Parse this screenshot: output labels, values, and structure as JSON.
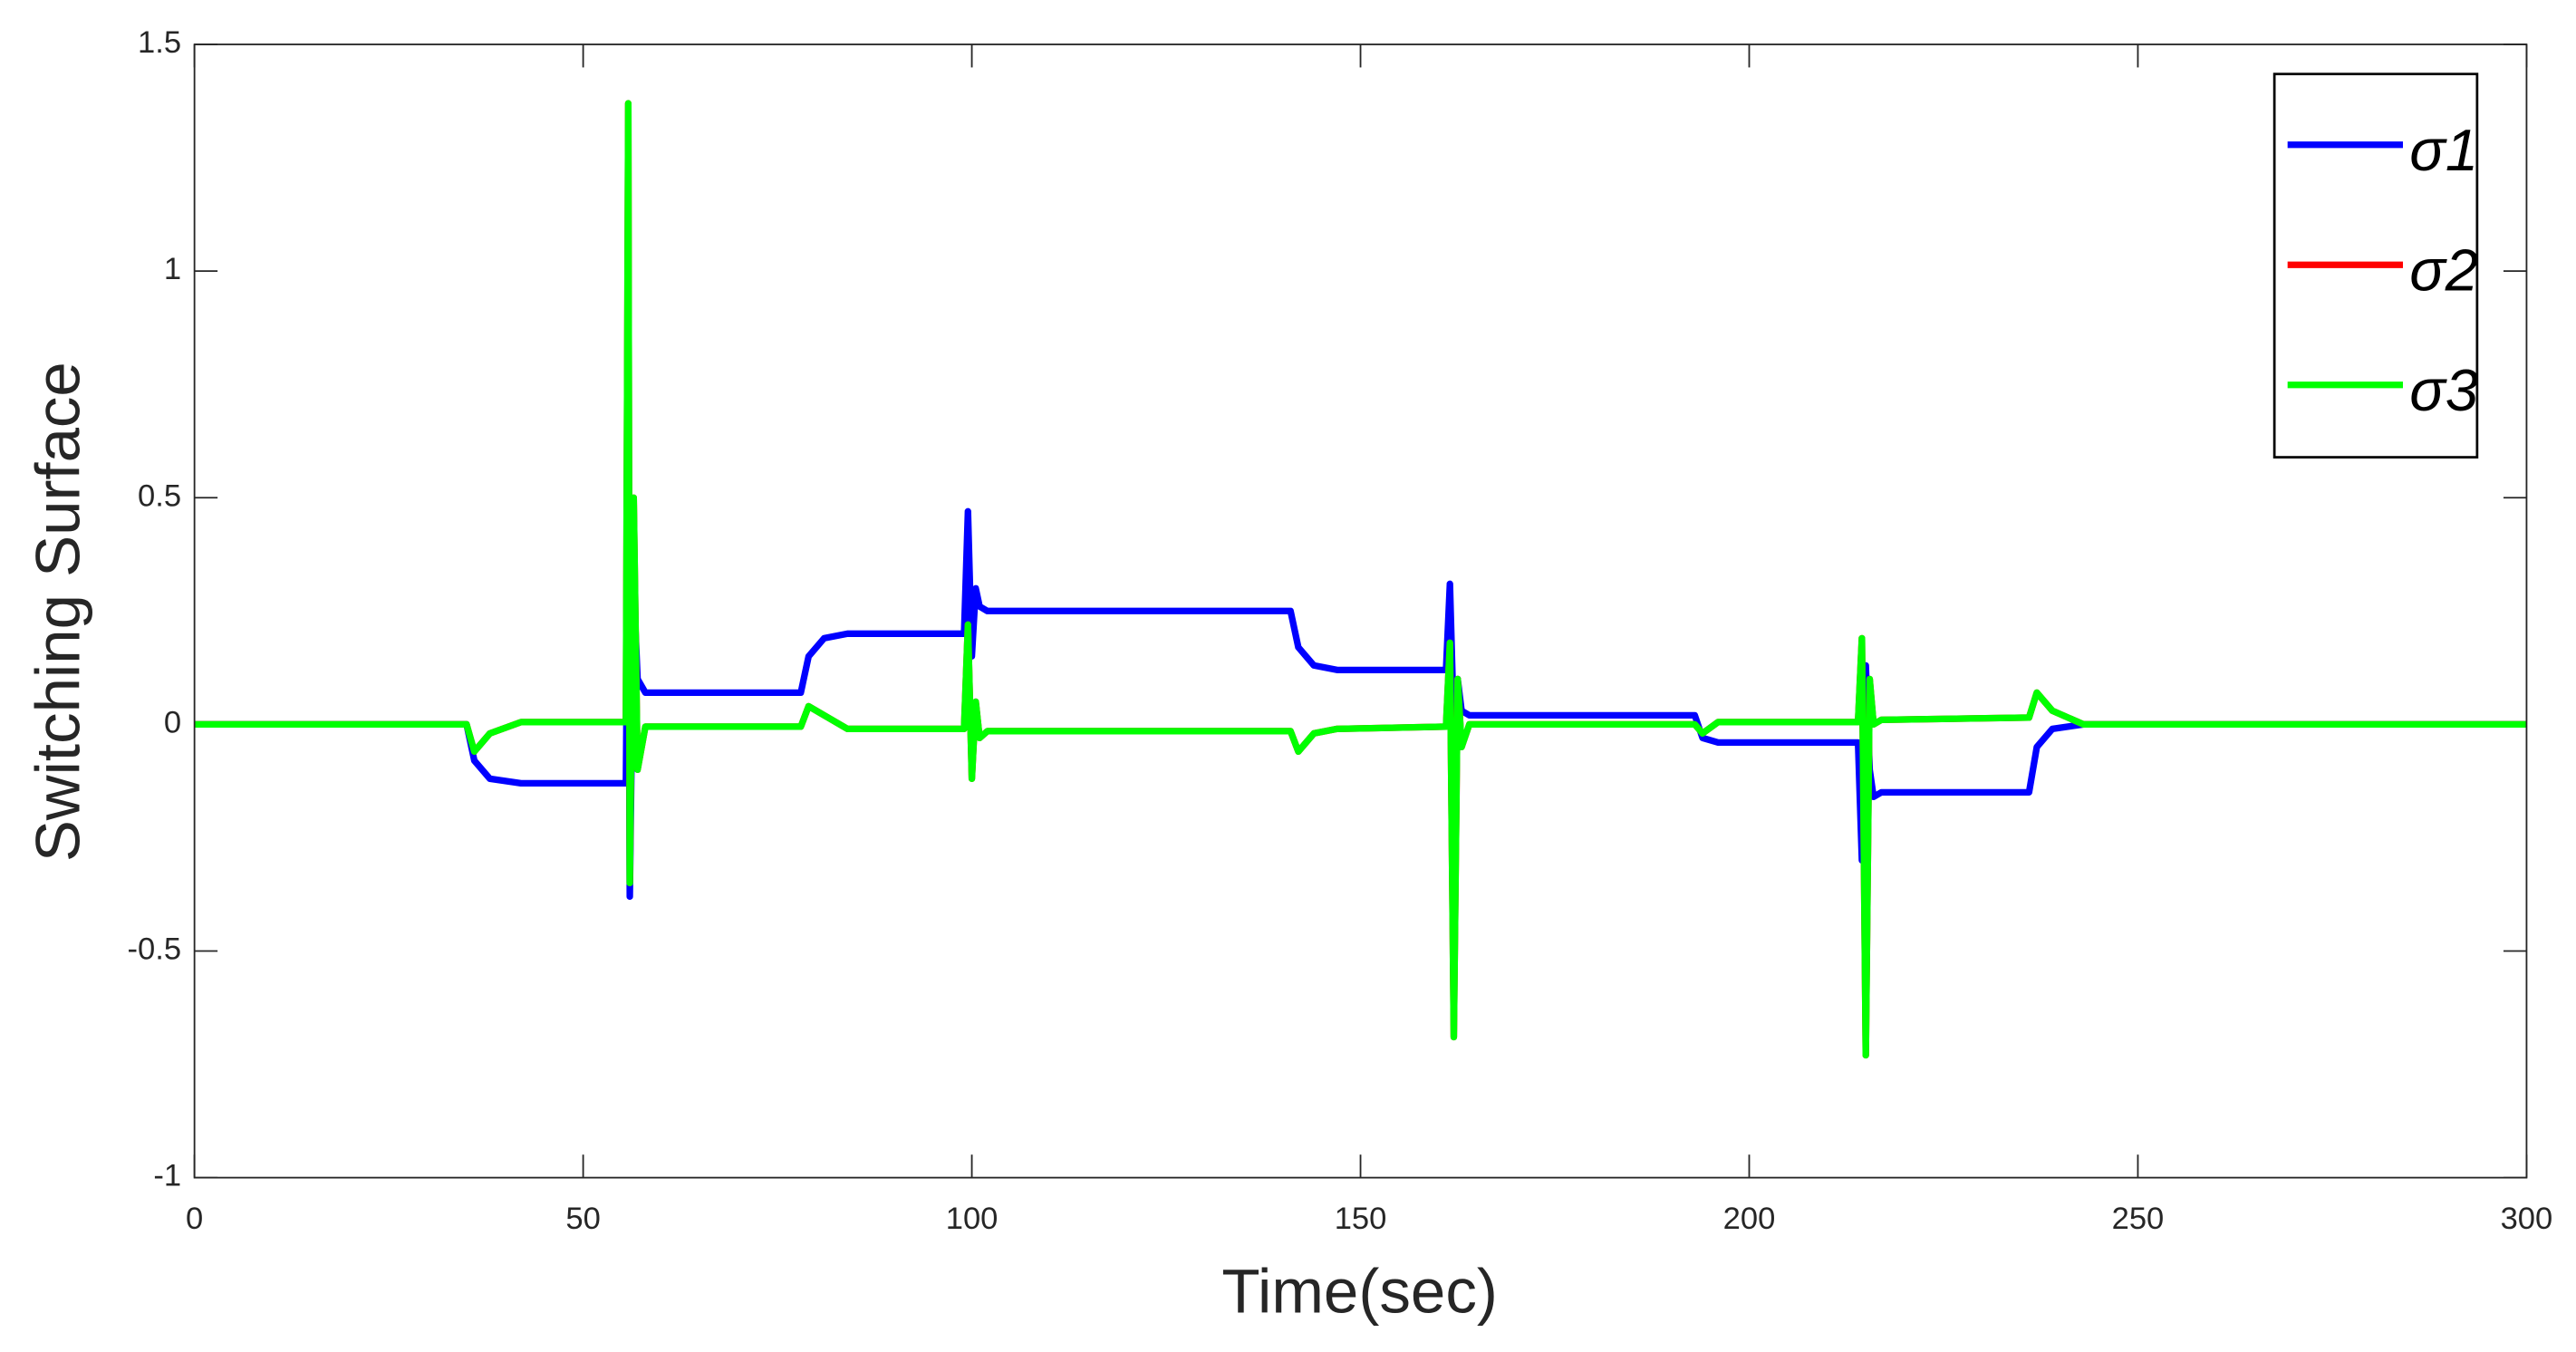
{
  "chart_data": {
    "type": "line",
    "xlabel": "Time(sec)",
    "ylabel": "Switching Surface",
    "x": [
      0,
      35,
      36,
      38,
      42,
      55.5,
      55.8,
      56,
      56.5,
      57,
      58,
      78,
      79,
      81,
      84,
      99,
      99.5,
      100,
      100.5,
      101,
      102,
      141,
      142,
      144,
      147,
      161,
      161.5,
      162,
      162.5,
      163,
      164,
      193,
      194,
      196,
      214,
      214.5,
      215,
      215.5,
      216,
      217,
      236,
      237,
      239,
      243,
      300
    ],
    "series": [
      {
        "name": "σ1",
        "color": "#0000ff",
        "values": [
          0,
          0,
          -0.08,
          -0.12,
          -0.13,
          -0.13,
          0.5,
          -0.38,
          0.3,
          0.1,
          0.07,
          0.07,
          0.15,
          0.19,
          0.2,
          0.2,
          0.47,
          0.15,
          0.3,
          0.26,
          0.25,
          0.25,
          0.17,
          0.13,
          0.12,
          0.12,
          0.31,
          0,
          0.1,
          0.03,
          0.02,
          0.02,
          -0.03,
          -0.04,
          -0.04,
          -0.3,
          0.13,
          -0.1,
          -0.16,
          -0.15,
          -0.15,
          -0.05,
          -0.01,
          0,
          0
        ]
      },
      {
        "name": "σ2",
        "color": "#ff0000",
        "values": [
          0,
          0,
          -0.06,
          -0.02,
          0.005,
          0.005,
          1.37,
          -0.35,
          0.5,
          -0.1,
          -0.005,
          -0.005,
          0.04,
          0.02,
          -0.01,
          -0.01,
          0.22,
          -0.12,
          0.05,
          -0.03,
          -0.015,
          -0.015,
          -0.06,
          -0.02,
          -0.01,
          -0.005,
          0.18,
          -0.69,
          0.1,
          -0.05,
          0,
          0,
          -0.02,
          0.005,
          0.005,
          0.19,
          -0.73,
          0.1,
          0,
          0.01,
          0.015,
          0.07,
          0.03,
          0,
          0
        ]
      },
      {
        "name": "σ3",
        "color": "#00ff00",
        "values": [
          0,
          0,
          -0.06,
          -0.02,
          0.005,
          0.005,
          1.37,
          -0.35,
          0.5,
          -0.1,
          -0.005,
          -0.005,
          0.04,
          0.02,
          -0.01,
          -0.01,
          0.22,
          -0.12,
          0.05,
          -0.03,
          -0.015,
          -0.015,
          -0.06,
          -0.02,
          -0.01,
          -0.005,
          0.18,
          -0.69,
          0.1,
          -0.05,
          0,
          0,
          -0.02,
          0.005,
          0.005,
          0.19,
          -0.73,
          0.1,
          0,
          0.01,
          0.015,
          0.07,
          0.03,
          0,
          0
        ]
      }
    ],
    "xlim": [
      0,
      300
    ],
    "xticks": [
      0,
      50,
      100,
      150,
      200,
      250,
      300
    ],
    "ylim": [
      -1,
      1.5
    ],
    "yticks": [
      -1,
      -0.5,
      0,
      0.5,
      1,
      1.5
    ],
    "legend": "upper right",
    "grid": false
  }
}
